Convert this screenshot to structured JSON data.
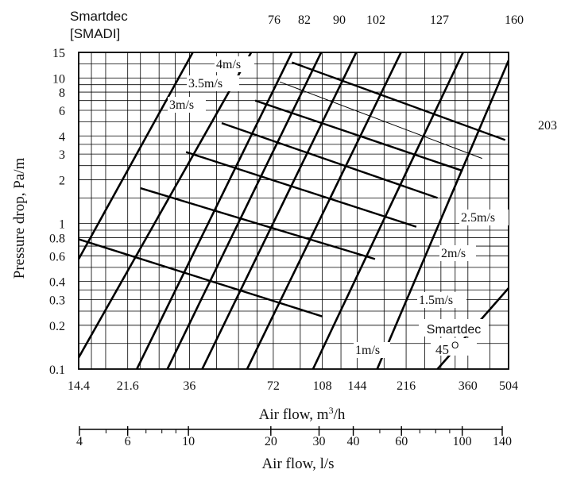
{
  "chart_data": {
    "type": "line",
    "xscale": "log",
    "yscale": "log",
    "xlim": [
      14.4,
      504
    ],
    "ylim": [
      0.1,
      15
    ],
    "grid": true,
    "xlabel": "Air flow, m³/h",
    "xlabel_main": "Air flow, m",
    "xlabel_sup": "3",
    "xlabel_tail": "/h",
    "ylabel": "Pressure drop, Pa/m",
    "x2label": "Air flow, l/s",
    "top_label_line1": "Smartdec",
    "top_label_line2": "[SMADI]",
    "xticks": [
      "14.4",
      "21.6",
      "36",
      "72",
      "108",
      "144",
      "216",
      "360",
      "504"
    ],
    "yticks": [
      "0.1",
      "0.2",
      "0.3",
      "0.4",
      "0.6",
      "0.8",
      "1",
      "2",
      "3",
      "4",
      "6",
      "8",
      "10",
      "15"
    ],
    "x2ticks": [
      "4",
      "6",
      "10",
      "20",
      "30",
      "40",
      "60",
      "100",
      "140"
    ],
    "duct_sizes": [
      {
        "label": "",
        "points": [
          [
            14.4,
            0.57
          ],
          [
            37,
            15
          ]
        ]
      },
      {
        "label": "",
        "points": [
          [
            14.4,
            0.12
          ],
          [
            60,
            15
          ]
        ]
      },
      {
        "label": "76",
        "points": [
          [
            23.3,
            0.1
          ],
          [
            84,
            15
          ]
        ]
      },
      {
        "label": "82",
        "points": [
          [
            30,
            0.1
          ],
          [
            107,
            15
          ]
        ]
      },
      {
        "label": "90",
        "points": [
          [
            40,
            0.1
          ],
          [
            143,
            15
          ]
        ]
      },
      {
        "label": "102",
        "points": [
          [
            58,
            0.1
          ],
          [
            207,
            15
          ]
        ]
      },
      {
        "label": "127",
        "points": [
          [
            100,
            0.1
          ],
          [
            346,
            15
          ]
        ]
      },
      {
        "label": "160",
        "points": [
          [
            170,
            0.1
          ],
          [
            504,
            13.2
          ]
        ]
      },
      {
        "label": "203",
        "points": [
          [
            280,
            0.1
          ],
          [
            504,
            0.36
          ]
        ]
      }
    ],
    "velocity_lines": [
      {
        "label": "1m/s",
        "points": [
          [
            14.4,
            0.78
          ],
          [
            108,
            0.23
          ]
        ]
      },
      {
        "label": "1.5m/s",
        "points": [
          [
            24,
            1.75
          ],
          [
            167,
            0.57
          ]
        ]
      },
      {
        "label": "2m/s",
        "points": [
          [
            35,
            3.1
          ],
          [
            235,
            0.95
          ]
        ]
      },
      {
        "label": "2.5m/s",
        "points": [
          [
            47,
            4.9
          ],
          [
            280,
            1.5
          ]
        ]
      },
      {
        "label": "3m/s",
        "points": [
          [
            62,
            7
          ],
          [
            345,
            2.3
          ]
        ]
      },
      {
        "label": "3.5m/s",
        "points": [
          [
            76,
            9.4
          ],
          [
            405,
            2.8
          ]
        ],
        "thin": true
      },
      {
        "label": "4m/s",
        "points": [
          [
            84,
            12.8
          ],
          [
            490,
            3.75
          ]
        ]
      }
    ],
    "annotation": {
      "line1": "Smartdec",
      "line2": "45",
      "degree": "O"
    }
  }
}
